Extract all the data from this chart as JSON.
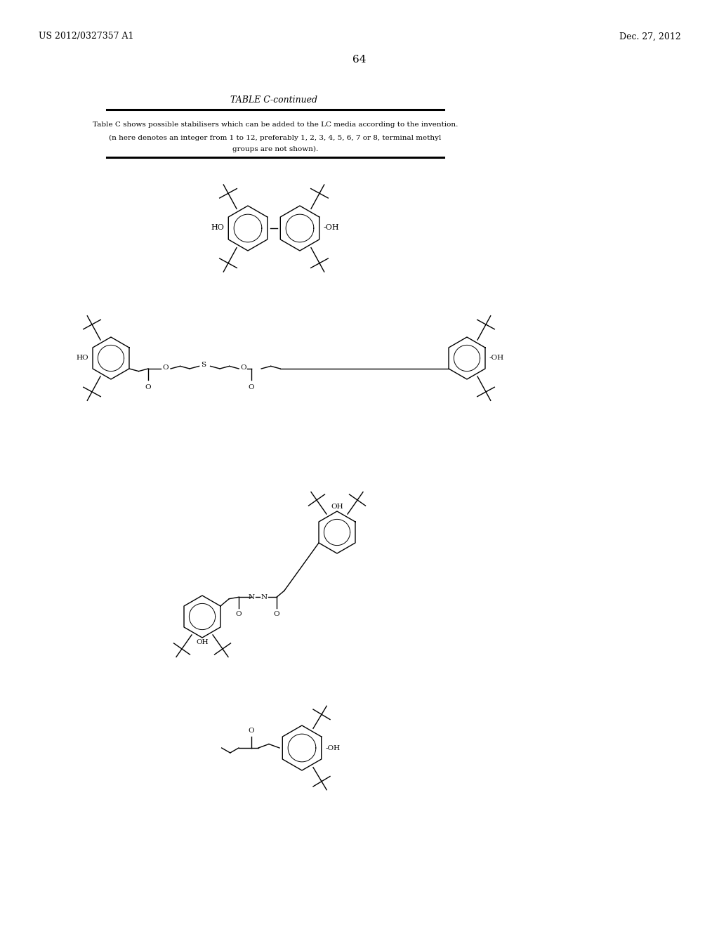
{
  "page_number": "64",
  "left_header": "US 2012/0327357 A1",
  "right_header": "Dec. 27, 2012",
  "table_title": "TABLE C-continued",
  "table_text_line1": "Table C shows possible stabilisers which can be added to the LC media according to the invention.",
  "table_text_line2": "(n here denotes an integer from 1 to 12, preferably 1, 2, 3, 4, 5, 6, 7 or 8, terminal methyl",
  "table_text_line3": "groups are not shown).",
  "bg_color": "#ffffff",
  "text_color": "#000000",
  "line1_thick": 2.0,
  "line2_thick": 1.5,
  "lw": 1.0
}
